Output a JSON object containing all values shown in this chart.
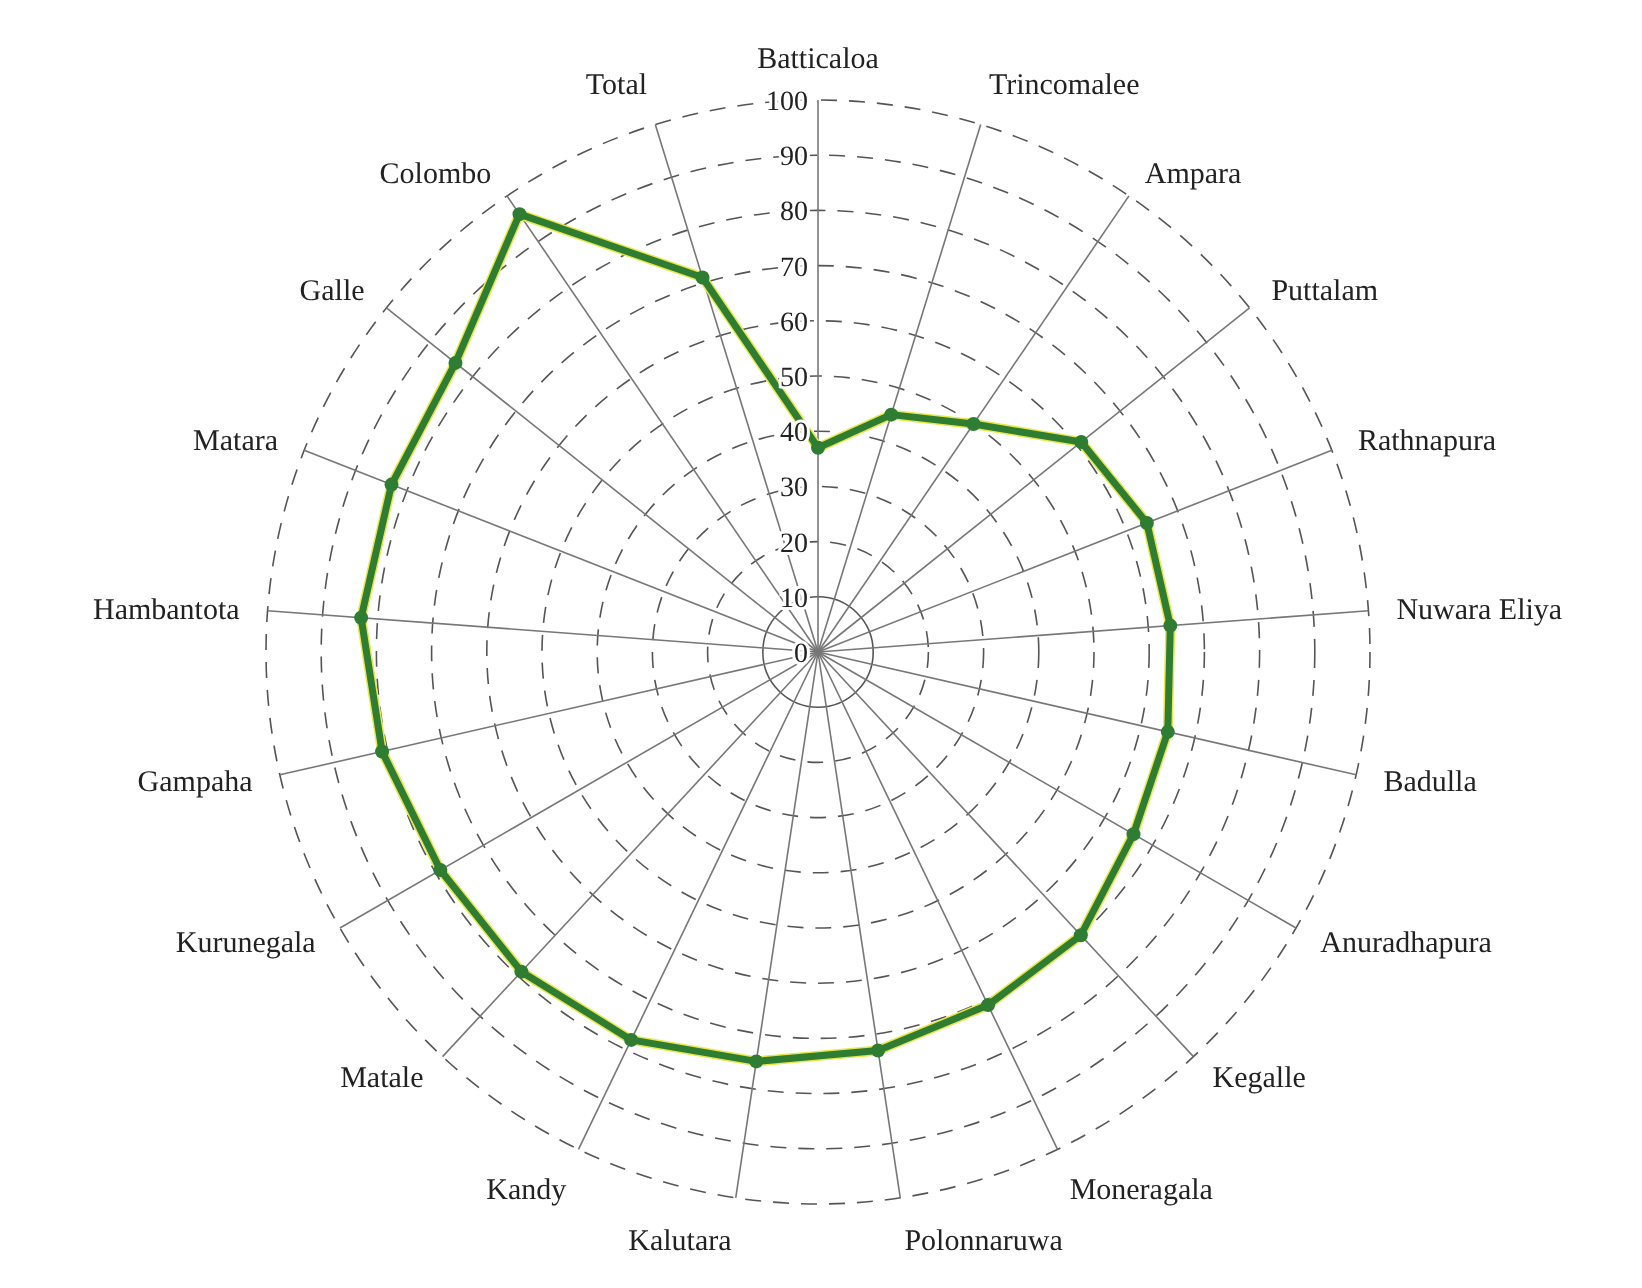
{
  "chart_data": {
    "type": "radar",
    "categories": [
      "Batticaloa",
      "Trincomalee",
      "Ampara",
      "Puttalam",
      "Rathnapura",
      "Nuwara Eliya",
      "Badulla",
      "Anuradhapura",
      "Kegalle",
      "Moneragala",
      "Polonnaruwa",
      "Kalutara",
      "Kandy",
      "Matale",
      "Kurunegala",
      "Gampaha",
      "Hambantota",
      "Matara",
      "Galle",
      "Colombo",
      "Total"
    ],
    "series": [
      {
        "color": "#2e7d32",
        "values": [
          37,
          45,
          50,
          61,
          64,
          64,
          65,
          66,
          70,
          71,
          73,
          75,
          78,
          79,
          79,
          81,
          83,
          83,
          84,
          96,
          71
        ]
      }
    ],
    "ylim": [
      0,
      100
    ],
    "yticks": [
      0,
      10,
      20,
      30,
      40,
      50,
      60,
      70,
      80,
      90,
      100
    ],
    "grid": true,
    "marker": "circle",
    "line_style": "solid"
  }
}
